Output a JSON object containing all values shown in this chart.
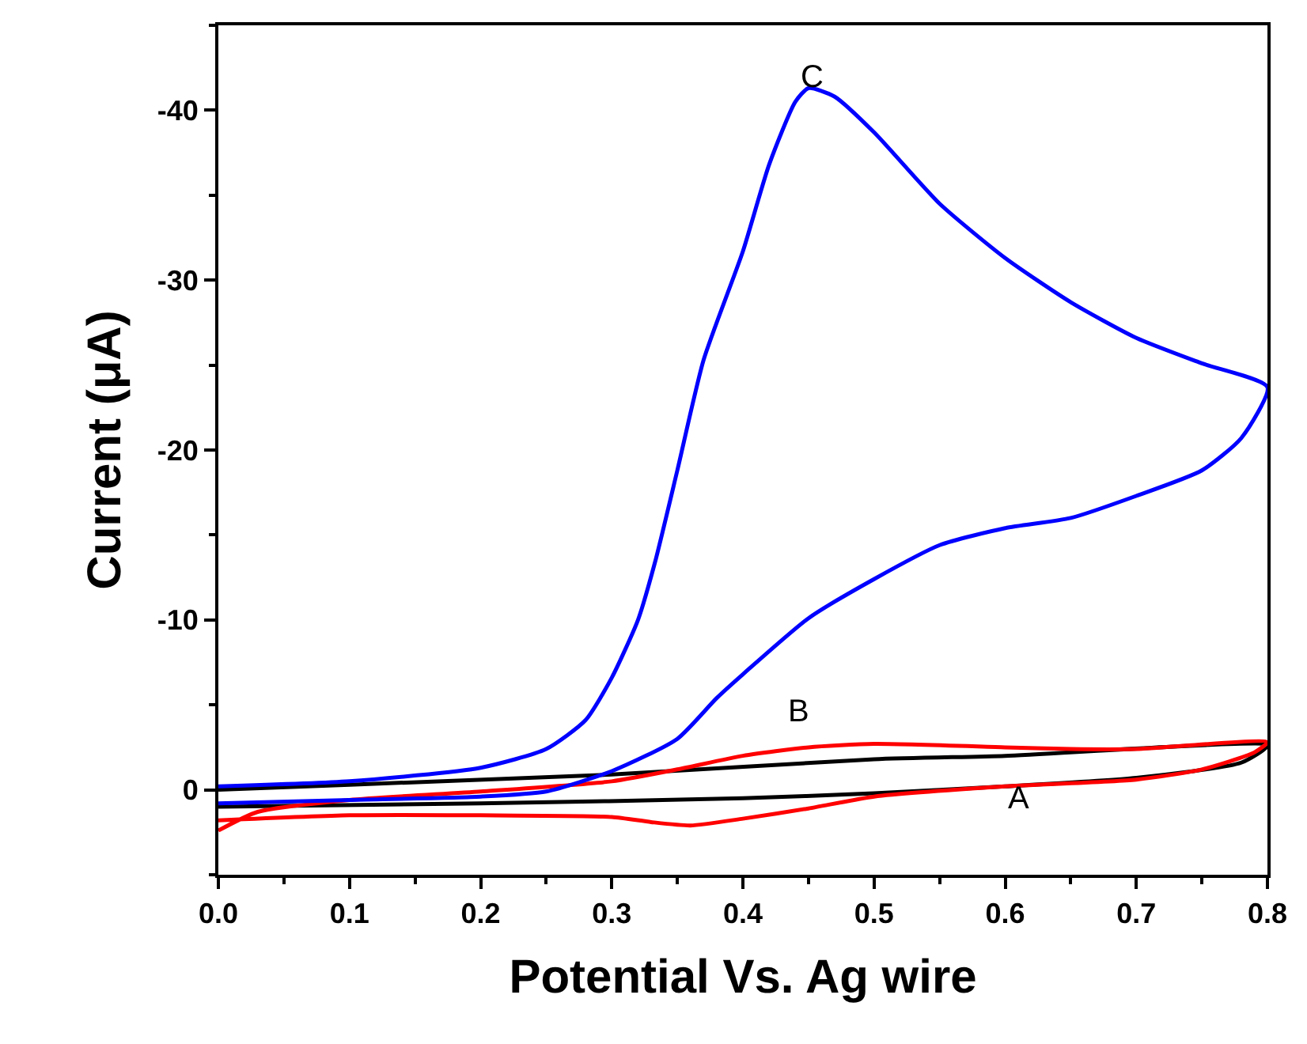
{
  "chart_data": {
    "type": "line",
    "xlabel": "Potential Vs. Ag wire",
    "ylabel": "Current (μA)",
    "xlim": [
      0,
      0.8
    ],
    "ylim": [
      5,
      -45
    ],
    "xticks": [
      {
        "value": 0,
        "label": "0.0"
      },
      0.1,
      0.2,
      0.3,
      0.4,
      0.5,
      0.6,
      0.7,
      0.8
    ],
    "yticks": [
      -40,
      -30,
      -20,
      -10,
      0
    ],
    "legend": false,
    "marker": "none",
    "line_style": "solid",
    "series": [
      {
        "color": "#000000",
        "x": [
          0,
          0.1,
          0.3,
          0.5,
          0.6,
          0.8,
          0.78,
          0.7,
          0.6,
          0.5,
          0.4,
          0.2,
          0
        ],
        "values": [
          0,
          -0.3,
          -0.9,
          -1.8,
          -2.0,
          -2.6,
          -1.6,
          -0.7,
          -0.2,
          0.2,
          0.5,
          0.8,
          1.0
        ]
      },
      {
        "color": "#ff0000",
        "x": [
          0,
          0.03,
          0.1,
          0.2,
          0.3,
          0.35,
          0.4,
          0.45,
          0.5,
          0.6,
          0.65,
          0.7,
          0.8,
          0.79,
          0.75,
          0.7,
          0.6,
          0.5,
          0.45,
          0.4,
          0.36,
          0.33,
          0.3,
          0.2,
          0.1,
          0
        ],
        "values": [
          2.4,
          1.3,
          0.6,
          0.1,
          -0.5,
          -1.2,
          -2.0,
          -2.5,
          -2.7,
          -2.5,
          -2.4,
          -2.4,
          -2.8,
          -2.2,
          -1.2,
          -0.6,
          -0.2,
          0.4,
          1.1,
          1.7,
          2.1,
          1.9,
          1.6,
          1.5,
          1.5,
          1.8
        ]
      },
      {
        "color": "#0000ff",
        "x": [
          0,
          0.1,
          0.2,
          0.25,
          0.28,
          0.3,
          0.32,
          0.333,
          0.35,
          0.37,
          0.4,
          0.42,
          0.44,
          0.45,
          0.47,
          0.5,
          0.55,
          0.6,
          0.65,
          0.7,
          0.75,
          0.8,
          0.78,
          0.75,
          0.7,
          0.65,
          0.6,
          0.55,
          0.5,
          0.45,
          0.4,
          0.38,
          0.35,
          0.3,
          0.25,
          0.2,
          0.1,
          0
        ],
        "values": [
          -0.2,
          -0.5,
          -1.3,
          -2.4,
          -4.1,
          -6.6,
          -10,
          -13.4,
          -18.8,
          -25.3,
          -31.7,
          -36.8,
          -40.5,
          -41.3,
          -40.8,
          -38.7,
          -34.5,
          -31.3,
          -28.7,
          -26.6,
          -25.1,
          -23.7,
          -20.7,
          -18.8,
          -17.3,
          -16.0,
          -15.4,
          -14.4,
          -12.4,
          -10.1,
          -6.8,
          -5.4,
          -3.0,
          -1.1,
          0.1,
          0.4,
          0.6,
          0.8
        ]
      }
    ],
    "annotations": [
      "C",
      "B",
      "A"
    ]
  }
}
